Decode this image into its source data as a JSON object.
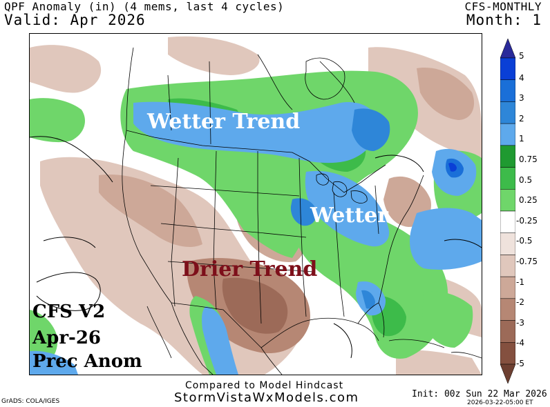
{
  "header": {
    "title": "QPF Anomaly (in) (4 mems, last 4 cycles)",
    "valid": "Valid: Apr 2026",
    "model": "CFS-MONTHLY",
    "month": "Month: 1"
  },
  "map": {
    "annotations": {
      "wetter_trend": "Wetter Trend",
      "wetter": "Wetter",
      "drier_trend": "Drier Trend"
    },
    "info_lines": [
      "CFS V2",
      "Apr-26",
      "Prec Anom"
    ]
  },
  "colorbar": {
    "labels": [
      "5",
      "4",
      "3",
      "2",
      "1",
      "0.75",
      "0.5",
      "0.25",
      "-0.25",
      "-0.5",
      "-0.75",
      "-1",
      "-2",
      "-3",
      "-4",
      "-5"
    ],
    "colors": [
      "#2a2a9a",
      "#0a3fd6",
      "#1a6fd8",
      "#2e86d8",
      "#5ea9ec",
      "#1f9a31",
      "#3dbb4a",
      "#6fd66a",
      "#ffffff",
      "#efe2dc",
      "#e0c7bc",
      "#cda898",
      "#b68774",
      "#9c6a58",
      "#84503f",
      "#6d3f31"
    ]
  },
  "footer": {
    "compared": "Compared to Model Hindcast",
    "site": "StormVistaWxModels.com",
    "grads": "GrADS: COLA/IGES",
    "init": "Init: 00z Sun 22 Mar 2026",
    "date": "2026-03-22-05:00 ET"
  }
}
